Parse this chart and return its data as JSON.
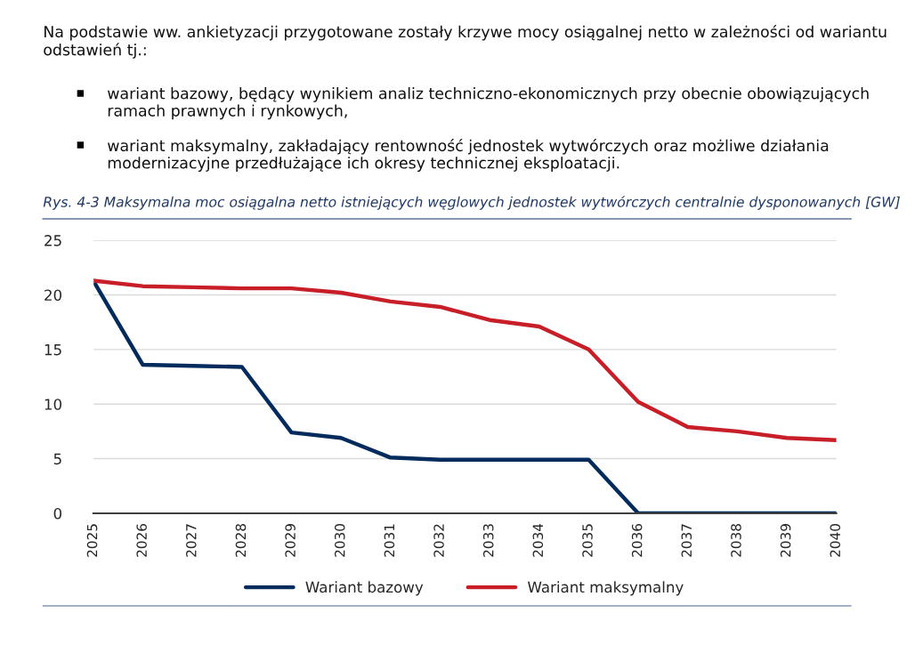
{
  "chart_data": {
    "type": "line",
    "title": "Rys. 4-3 Maksymalna moc osiągalna netto istniejących węglowych jednostek wytwórczych centralnie dysponowanych [GW]",
    "annotations": [
      "Na podstawie ww. ankietyzacji przygotowane zostały krzywe mocy osiągalnej netto w zależności od wariantu odstawień tj.:",
      "wariant bazowy, będący wynikiem analiz techniczno-ekonomicznych przy obecnie obowiązujących ramach prawnych i rynkowych,",
      "wariant maksymalny, zakładający rentowność jednostek wytwórczych oraz możliwe działania modernizacyjne przedłużające ich okresy technicznej eksploatacji."
    ],
    "categories": [
      "2025",
      "2026",
      "2027",
      "2028",
      "2029",
      "2030",
      "2031",
      "2032",
      "2033",
      "2034",
      "2035",
      "2036",
      "2037",
      "2038",
      "2039",
      "2040"
    ],
    "series": [
      {
        "name": "Wariant bazowy",
        "color": "#002b5c",
        "values": [
          21.3,
          13.6,
          13.5,
          13.4,
          7.4,
          6.9,
          5.1,
          4.9,
          4.9,
          4.9,
          4.9,
          0,
          0,
          0,
          0,
          0
        ]
      },
      {
        "name": "Wariant maksymalny",
        "color": "#c81e28",
        "values": [
          21.3,
          20.8,
          20.7,
          20.6,
          20.6,
          20.2,
          19.4,
          18.9,
          17.7,
          17.1,
          15.0,
          10.2,
          7.9,
          7.5,
          6.9,
          6.7
        ]
      }
    ],
    "ylim": [
      0,
      25
    ],
    "yticks": [
      0,
      5,
      10,
      15,
      20,
      25
    ],
    "grid": "y",
    "legend": "bottom",
    "marker": "none",
    "line_style": "solid"
  }
}
